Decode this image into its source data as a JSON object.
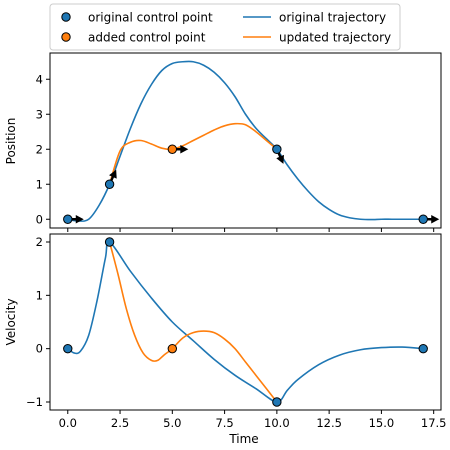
{
  "legend": {
    "entries": [
      {
        "label": "original control point",
        "kind": "marker",
        "color": "#1f77b4"
      },
      {
        "label": "added control point",
        "kind": "marker",
        "color": "#ff7f0e"
      },
      {
        "label": "original trajectory",
        "kind": "line",
        "color": "#1f77b4"
      },
      {
        "label": "updated trajectory",
        "kind": "line",
        "color": "#ff7f0e"
      }
    ]
  },
  "colors": {
    "original": "#1f77b4",
    "updated": "#ff7f0e",
    "marker_edge": "#000000",
    "arrow": "#000000"
  },
  "chart_data": [
    {
      "type": "line",
      "ylabel": "Position",
      "xlabel": "",
      "xlim": [
        -0.85,
        17.85
      ],
      "ylim": [
        -0.25,
        4.75
      ],
      "xticks": [
        0.0,
        2.5,
        5.0,
        7.5,
        10.0,
        12.5,
        15.0,
        17.5
      ],
      "yticks": [
        0,
        1,
        2,
        3,
        4
      ],
      "show_xtick_labels": false,
      "series": [
        {
          "name": "original trajectory",
          "color": "#1f77b4",
          "x": [
            0,
            0.5,
            1.0,
            1.5,
            2.0,
            2.5,
            3.0,
            3.5,
            4.0,
            4.5,
            5.0,
            5.5,
            6.0,
            6.5,
            7.0,
            7.5,
            8.0,
            8.5,
            9.0,
            9.5,
            10.0,
            10.5,
            11.0,
            11.5,
            12.0,
            12.5,
            13.0,
            13.5,
            14.0,
            14.5,
            15.0,
            15.5,
            16.0,
            16.5,
            17.0
          ],
          "y": [
            0,
            -0.05,
            0.0,
            0.4,
            1.0,
            1.8,
            2.6,
            3.3,
            3.85,
            4.25,
            4.45,
            4.5,
            4.5,
            4.4,
            4.2,
            3.9,
            3.5,
            3.0,
            2.6,
            2.3,
            2.0,
            1.55,
            1.15,
            0.8,
            0.5,
            0.28,
            0.12,
            0.04,
            0.0,
            -0.01,
            0.0,
            0.0,
            0.0,
            0.0,
            0.0
          ]
        },
        {
          "name": "updated trajectory",
          "color": "#ff7f0e",
          "x": [
            2.0,
            2.5,
            3.0,
            3.5,
            4.0,
            4.5,
            5.0,
            5.5,
            6.0,
            6.5,
            7.0,
            7.5,
            8.0,
            8.5,
            9.0,
            9.5,
            10.0
          ],
          "y": [
            1.0,
            1.95,
            2.2,
            2.25,
            2.15,
            2.03,
            2.0,
            2.1,
            2.25,
            2.4,
            2.55,
            2.67,
            2.73,
            2.7,
            2.5,
            2.25,
            2.0
          ]
        }
      ],
      "control_points": [
        {
          "x": 0,
          "y": 0,
          "kind": "original"
        },
        {
          "x": 2,
          "y": 1,
          "kind": "original"
        },
        {
          "x": 5,
          "y": 2,
          "kind": "added"
        },
        {
          "x": 10,
          "y": 2,
          "kind": "original"
        },
        {
          "x": 17,
          "y": 0,
          "kind": "original"
        }
      ],
      "velocity_arrows": [
        {
          "x": 0,
          "y": 0,
          "dx": 1,
          "dy": 0
        },
        {
          "x": 2,
          "y": 1,
          "dx": 0.45,
          "dy": 1.0
        },
        {
          "x": 5,
          "y": 2,
          "dx": 1,
          "dy": 0
        },
        {
          "x": 10,
          "y": 2,
          "dx": 0.45,
          "dy": -1.0
        },
        {
          "x": 17,
          "y": 0,
          "dx": 1,
          "dy": 0
        }
      ]
    },
    {
      "type": "line",
      "ylabel": "Velocity",
      "xlabel": "Time",
      "xlim": [
        -0.85,
        17.85
      ],
      "ylim": [
        -1.15,
        2.15
      ],
      "xticks": [
        0.0,
        2.5,
        5.0,
        7.5,
        10.0,
        12.5,
        15.0,
        17.5
      ],
      "xtick_labels": [
        "0.0",
        "2.5",
        "5.0",
        "7.5",
        "10.0",
        "12.5",
        "15.0",
        "17.5"
      ],
      "yticks": [
        -1,
        0,
        1,
        2
      ],
      "series": [
        {
          "name": "original trajectory",
          "color": "#1f77b4",
          "x": [
            0,
            0.3,
            0.6,
            1.0,
            1.4,
            1.8,
            2.0,
            3.0,
            4.0,
            5.0,
            6.0,
            7.0,
            8.0,
            9.0,
            10.0,
            10.5,
            11.0,
            12.0,
            13.0,
            14.0,
            15.0,
            16.0,
            17.0
          ],
          "y": [
            0,
            -0.08,
            -0.05,
            0.25,
            0.9,
            1.7,
            2.0,
            1.45,
            0.95,
            0.5,
            0.15,
            -0.2,
            -0.5,
            -0.75,
            -1.0,
            -0.78,
            -0.58,
            -0.3,
            -0.12,
            -0.02,
            0.02,
            0.03,
            0.0
          ]
        },
        {
          "name": "updated trajectory",
          "color": "#ff7f0e",
          "x": [
            2.0,
            2.4,
            2.8,
            3.2,
            3.6,
            4.0,
            4.3,
            4.6,
            5.0,
            5.5,
            6.0,
            6.5,
            7.0,
            7.5,
            8.0,
            8.5,
            9.0,
            9.5,
            10.0
          ],
          "y": [
            2.0,
            1.4,
            0.75,
            0.25,
            -0.08,
            -0.22,
            -0.22,
            -0.12,
            0.0,
            0.2,
            0.3,
            0.33,
            0.3,
            0.18,
            0.0,
            -0.25,
            -0.5,
            -0.75,
            -1.0
          ]
        }
      ],
      "control_points": [
        {
          "x": 0,
          "y": 0,
          "kind": "original"
        },
        {
          "x": 2,
          "y": 2,
          "kind": "original"
        },
        {
          "x": 5,
          "y": 0,
          "kind": "added"
        },
        {
          "x": 10,
          "y": -1,
          "kind": "original"
        },
        {
          "x": 17,
          "y": 0,
          "kind": "original"
        }
      ]
    }
  ]
}
